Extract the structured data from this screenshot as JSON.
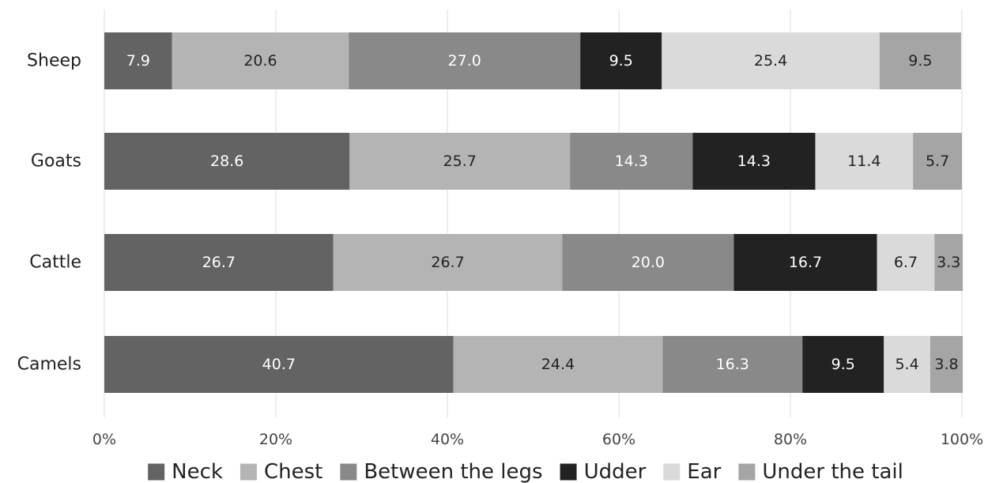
{
  "chart_data": {
    "type": "bar",
    "orientation": "horizontal",
    "stacked": "percent",
    "categories": [
      "Sheep",
      "Goats",
      "Cattle",
      "Camels"
    ],
    "series": [
      {
        "name": "Neck",
        "color": "#636363",
        "values": [
          7.9,
          28.6,
          26.7,
          40.7
        ]
      },
      {
        "name": "Chest",
        "color": "#b4b4b4",
        "values": [
          20.6,
          25.7,
          26.7,
          24.4
        ]
      },
      {
        "name": "Between the legs",
        "color": "#898989",
        "values": [
          27.0,
          14.3,
          20.0,
          16.3
        ]
      },
      {
        "name": "Udder",
        "color": "#222222",
        "values": [
          9.5,
          14.3,
          16.7,
          9.5
        ]
      },
      {
        "name": "Ear",
        "color": "#dadada",
        "values": [
          25.4,
          11.4,
          6.7,
          5.4
        ]
      },
      {
        "name": "Under the tail",
        "color": "#a5a5a5",
        "values": [
          9.5,
          5.7,
          3.3,
          3.8
        ]
      }
    ],
    "data_labels": [
      [
        "7.9",
        "28.6",
        "26.7",
        "40.7"
      ],
      [
        "20.6",
        "25.7",
        "26.7",
        "24.4"
      ],
      [
        "27.0",
        "14.3",
        "20.0",
        "16.3"
      ],
      [
        "9.5",
        "14.3",
        "16.7",
        "9.5"
      ],
      [
        "25.4",
        "11.4",
        "6.7",
        "5.4"
      ],
      [
        "9.5",
        "5.7",
        "3.3",
        "3.8"
      ]
    ],
    "x_ticks": [
      "0%",
      "20%",
      "40%",
      "60%",
      "80%",
      "100%"
    ],
    "xlim": [
      0,
      100
    ],
    "title": "",
    "xlabel": "",
    "ylabel": "",
    "grid": "vertical",
    "legend_position": "bottom"
  }
}
